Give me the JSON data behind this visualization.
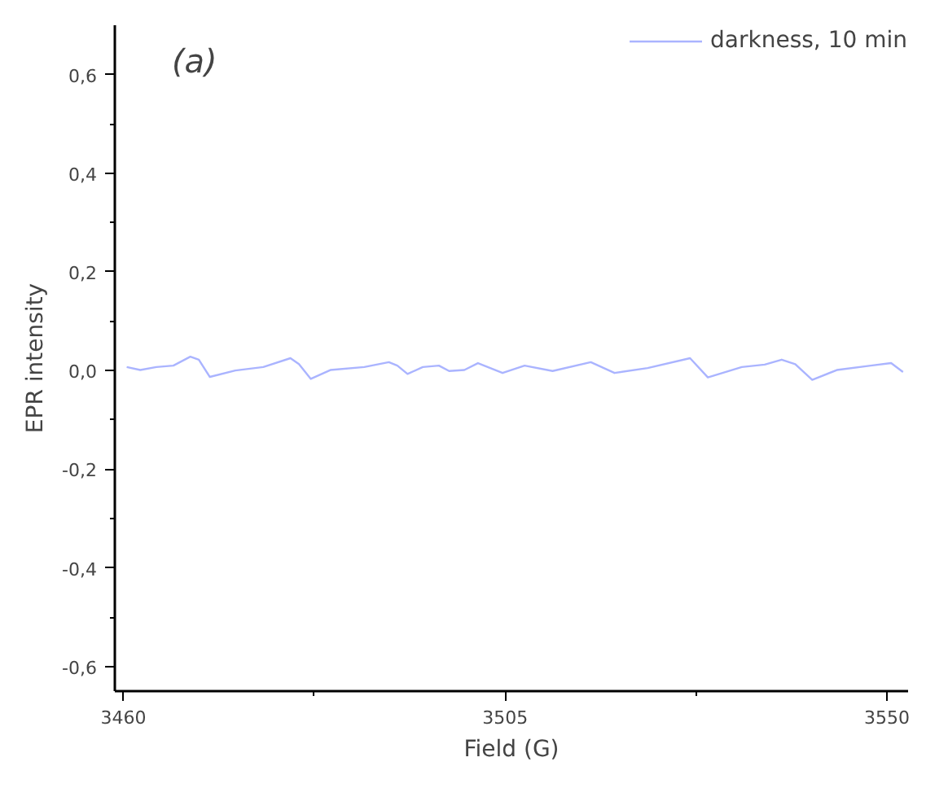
{
  "chart_data": {
    "type": "line",
    "xlabel": "Field (G)",
    "ylabel": "EPR intensity",
    "annotations": [
      "(a)"
    ],
    "x": [
      3460.4,
      3462.0,
      3463.9,
      3465.9,
      3467.9,
      3468.9,
      3470.2,
      3473.2,
      3476.5,
      3479.7,
      3480.7,
      3482.1,
      3484.4,
      3488.4,
      3491.3,
      3492.3,
      3493.5,
      3495.3,
      3497.2,
      3498.4,
      3500.2,
      3501.8,
      3504.7,
      3507.3,
      3510.6,
      3515.1,
      3517.9,
      3521.8,
      3526.8,
      3528.9,
      3532.9,
      3535.6,
      3537.6,
      3539.2,
      3541.2,
      3544.1,
      3548.1,
      3550.5,
      3551.9
    ],
    "series": [
      {
        "name": "darkness, 10 min",
        "color": "#aab4ff",
        "values": [
          0.007,
          0.001,
          0.007,
          0.01,
          0.028,
          0.022,
          -0.013,
          0.0,
          0.007,
          0.025,
          0.013,
          -0.017,
          0.001,
          0.007,
          0.017,
          0.01,
          -0.007,
          0.007,
          0.01,
          -0.001,
          0.001,
          0.015,
          -0.005,
          0.01,
          -0.001,
          0.017,
          -0.005,
          0.005,
          0.025,
          -0.014,
          0.007,
          0.012,
          0.022,
          0.013,
          -0.019,
          0.001,
          0.01,
          0.015,
          -0.003
        ]
      }
    ],
    "xlim": [
      3459,
      3552.5
    ],
    "ylim": [
      -0.65,
      0.7
    ],
    "xticks": [
      3460,
      3505,
      3550
    ],
    "yticks": [
      {
        "value": -0.6,
        "label": "-0,6"
      },
      {
        "value": -0.4,
        "label": "-0,4"
      },
      {
        "value": -0.2,
        "label": "-0,2"
      },
      {
        "value": 0.0,
        "label": "0,0"
      },
      {
        "value": 0.2,
        "label": "0,2"
      },
      {
        "value": 0.4,
        "label": "0,4"
      },
      {
        "value": 0.6,
        "label": "0,6"
      }
    ],
    "grid": false,
    "legend": "top right",
    "marker": "none",
    "line_style": "solid"
  }
}
